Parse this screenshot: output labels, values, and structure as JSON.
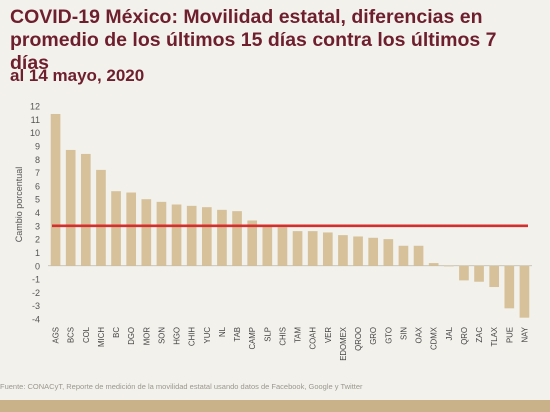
{
  "title": "COVID-19 México: Movilidad estatal, diferencias en promedio de los últimos 15 días contra los últimos 7 días",
  "subtitle": "al 14 mayo, 2020",
  "source": "Fuente: CONACyT, Reporte de medición de la movilidad estatal usando datos de Facebook, Google y Twitter",
  "colors": {
    "bar": "#d6c19a",
    "reference_line": "#d62d2d",
    "title": "#6e1f2e"
  },
  "chart_data": {
    "type": "bar",
    "ylabel": "Cambio porcentual",
    "ylim": [
      -4,
      12
    ],
    "yticks": [
      12,
      11,
      10,
      9,
      8,
      7,
      6,
      5,
      4,
      3,
      2,
      1,
      0,
      -1,
      -2,
      -3,
      -4
    ],
    "reference_line": 3,
    "grid": false,
    "categories": [
      "AGS",
      "BCS",
      "COL",
      "MICH",
      "BC",
      "DGO",
      "MOR",
      "SON",
      "HGO",
      "CHIH",
      "YUC",
      "NL",
      "TAB",
      "CAMP",
      "SLP",
      "CHIS",
      "TAM",
      "COAH",
      "VER",
      "EDOMEX",
      "QROO",
      "GRO",
      "GTO",
      "SIN",
      "OAX",
      "CDMX",
      "JAL",
      "QRO",
      "ZAC",
      "TLAX",
      "PUE",
      "NAY"
    ],
    "values": [
      11.4,
      8.7,
      8.4,
      7.2,
      5.6,
      5.5,
      5.0,
      4.8,
      4.6,
      4.5,
      4.4,
      4.2,
      4.1,
      3.4,
      3.0,
      2.9,
      2.6,
      2.6,
      2.5,
      2.3,
      2.2,
      2.1,
      2.0,
      1.5,
      1.5,
      0.2,
      0.0,
      -1.1,
      -1.2,
      -1.6,
      -3.2,
      -3.9
    ]
  }
}
